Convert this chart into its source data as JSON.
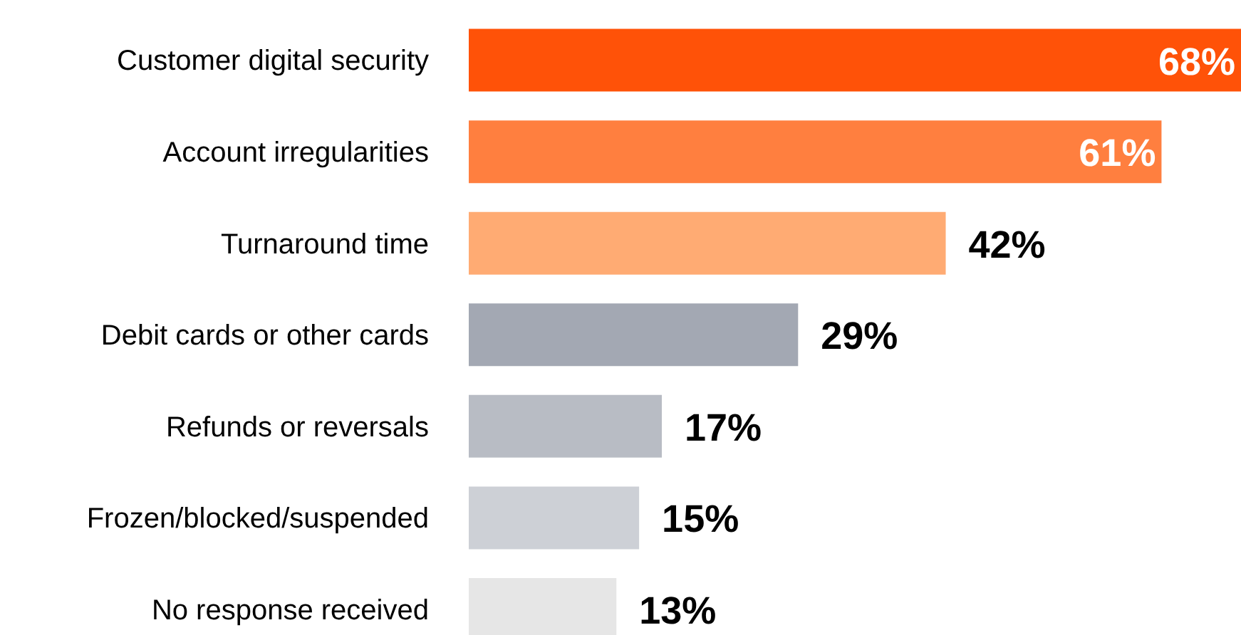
{
  "chart_data": {
    "type": "bar",
    "orientation": "horizontal",
    "categories": [
      "Customer digital security",
      "Account irregularities",
      "Turnaround time",
      "Debit cards or other cards",
      "Refunds or reversals",
      "Frozen/blocked/suspended",
      "No response received"
    ],
    "values": [
      68,
      61,
      42,
      29,
      17,
      15,
      13
    ],
    "colors": [
      "#ff5208",
      "#ff7f3f",
      "#ffab73",
      "#a3a8b3",
      "#b8bcc4",
      "#cdd0d6",
      "#e6e6e6"
    ],
    "value_labels": [
      "68%",
      "61%",
      "42%",
      "29%",
      "17%",
      "15%",
      "13%"
    ]
  }
}
